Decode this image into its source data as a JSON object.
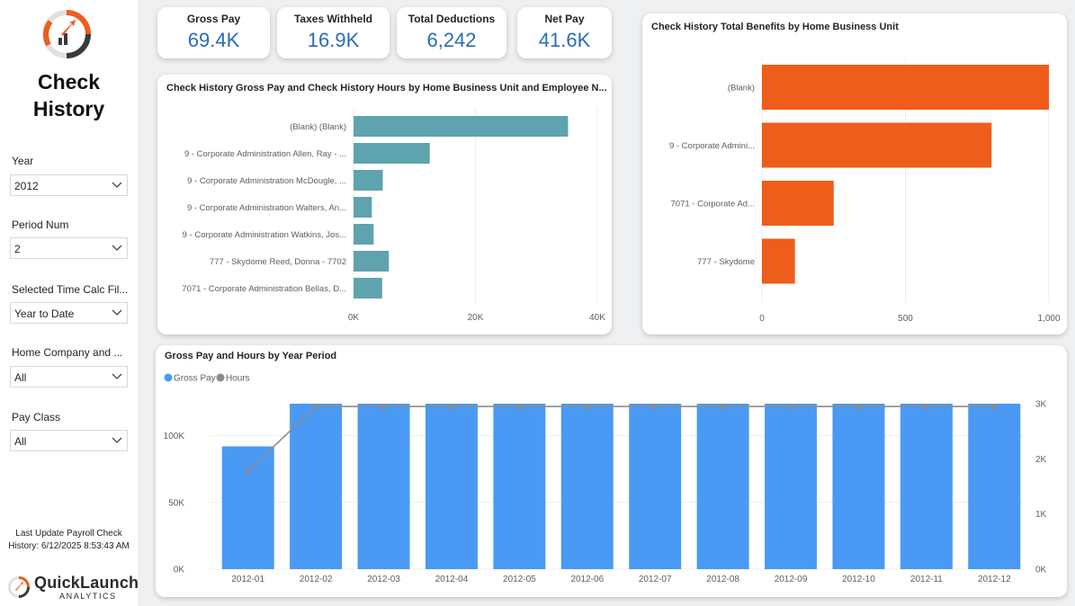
{
  "page": {
    "title": "Check History"
  },
  "sidebar": {
    "slicers": [
      {
        "label": "Year",
        "value": "2012"
      },
      {
        "label": "Period Num",
        "value": "2"
      },
      {
        "label": "Selected Time Calc Fil...",
        "value": "Year to Date"
      },
      {
        "label": "Home Company and ...",
        "value": "All"
      },
      {
        "label": "Pay Class",
        "value": "All"
      }
    ],
    "last_update": "Last Update Payroll Check History: 6/12/2025 8:53:43 AM",
    "brand": {
      "name": "QuickLaunch",
      "sub": "ANALYTICS"
    },
    "icons": [
      "logo-icon",
      "chevron-down-icon"
    ]
  },
  "kpis": [
    {
      "title": "Gross Pay",
      "value": "69.4K"
    },
    {
      "title": "Taxes Withheld",
      "value": "16.9K"
    },
    {
      "title": "Total Deductions",
      "value": "6,242"
    },
    {
      "title": "Net Pay",
      "value": "41.6K"
    }
  ],
  "colors": {
    "teal": "#5fa3ae",
    "orange": "#ee5d1a",
    "blue": "#4a9af5",
    "line": "#8c8c8c",
    "kpi": "#2a6db5"
  },
  "chart_data": [
    {
      "type": "bar",
      "orientation": "horizontal",
      "title": "Check History Gross Pay and Check History Hours by Home Business Unit and Employee N...",
      "categories": [
        "(Blank) (Blank)",
        "9 - Corporate Administration Allen, Ray - ...",
        "9 - Corporate Administration McDougle, ...",
        "9 - Corporate Administration Walters, An...",
        "9 - Corporate Administration Watkins, Jos...",
        "777 - Skydome Reed, Donna - 7702",
        "7071 - Corporate Administration Bellas, D..."
      ],
      "values": [
        35200,
        12500,
        4800,
        3000,
        3300,
        5800,
        4700
      ],
      "xlim": [
        0,
        40000
      ],
      "ticks": [
        "0K",
        "20K",
        "40K"
      ],
      "tick_values": [
        0,
        20000,
        40000
      ]
    },
    {
      "type": "bar",
      "orientation": "horizontal",
      "title": "Check History Total Benefits by Home Business Unit",
      "categories": [
        "(Blank)",
        "9 - Corporate Admini...",
        "7071 - Corporate Ad...",
        "777 - Skydome"
      ],
      "values": [
        1000,
        800,
        250,
        115
      ],
      "xlim": [
        0,
        1000
      ],
      "ticks": [
        "0",
        "500",
        "1,000"
      ],
      "tick_values": [
        0,
        500,
        1000
      ]
    },
    {
      "type": "bar",
      "title": "Gross Pay and Hours by Year Period",
      "legend": [
        "Gross Pay",
        "Hours"
      ],
      "categories": [
        "2012-01",
        "2012-02",
        "2012-03",
        "2012-04",
        "2012-05",
        "2012-06",
        "2012-07",
        "2012-08",
        "2012-09",
        "2012-10",
        "2012-11",
        "2012-12"
      ],
      "series": [
        {
          "name": "Gross Pay",
          "type": "bar",
          "axis": "left",
          "values": [
            92000,
            124000,
            124000,
            124000,
            124000,
            124000,
            124000,
            124000,
            124000,
            124000,
            124000,
            124000
          ]
        },
        {
          "name": "Hours",
          "type": "line",
          "axis": "right",
          "values": [
            1780,
            2950,
            2950,
            2950,
            2950,
            2950,
            2950,
            2950,
            2950,
            2950,
            2950,
            2950
          ]
        }
      ],
      "ylim_left": [
        0,
        124000
      ],
      "ylim_right": [
        0,
        3000
      ],
      "left_ticks": [
        "0K",
        "50K",
        "100K"
      ],
      "left_tick_values": [
        0,
        50000,
        100000
      ],
      "right_ticks": [
        "0K",
        "1K",
        "2K",
        "3K"
      ],
      "right_tick_values": [
        0,
        1000,
        2000,
        3000
      ]
    }
  ]
}
